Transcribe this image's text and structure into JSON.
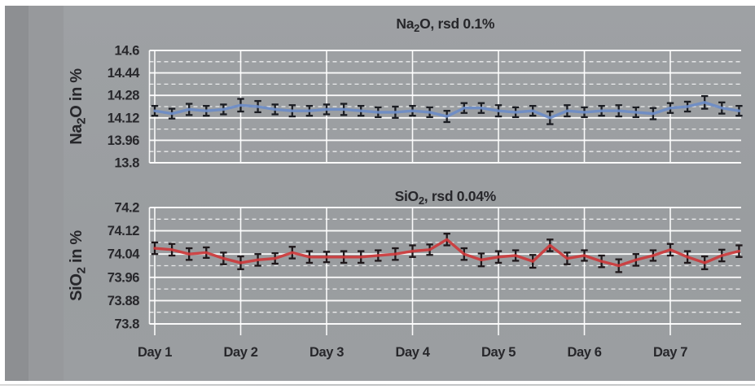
{
  "panel": {
    "background_color": "#9b9ea1",
    "left_strip_dark_color": "#8d8f92",
    "left_strip_mid_color": "#97999c",
    "text_color": "#27272b",
    "gridline_color": "#ffffff"
  },
  "x_axis": {
    "labels": [
      "Day 1",
      "Day 2",
      "Day 3",
      "Day 4",
      "Day 5",
      "Day 6",
      "Day 7"
    ],
    "points_per_day": 5
  },
  "chart_data": [
    {
      "type": "line",
      "title_plain": "Na2O, rsd 0.1%",
      "title_rich": [
        {
          "t": "Na"
        },
        {
          "sub": "2"
        },
        {
          "t": "O, rsd 0.1%"
        }
      ],
      "ylabel_plain": "Na2O in %",
      "ylabel_rich": [
        {
          "t": "Na"
        },
        {
          "sub": "2"
        },
        {
          "t": "O in %"
        }
      ],
      "ylim": [
        13.8,
        14.6
      ],
      "yticks": [
        14.6,
        14.44,
        14.28,
        14.12,
        13.96,
        13.8
      ],
      "ytick_labels": [
        "14.6",
        "14.44",
        "14.28",
        "14.12",
        "13.96",
        "13.8"
      ],
      "minor_step": 0.08,
      "line_color": "#6d8cc7",
      "error_bar_color": "#1a1c22",
      "legend": "none",
      "grid": "on",
      "values": [
        14.17,
        14.15,
        14.18,
        14.17,
        14.18,
        14.21,
        14.2,
        14.18,
        14.17,
        14.17,
        14.18,
        14.18,
        14.17,
        14.16,
        14.16,
        14.17,
        14.16,
        14.13,
        14.19,
        14.19,
        14.17,
        14.16,
        14.17,
        14.12,
        14.17,
        14.16,
        14.17,
        14.17,
        14.16,
        14.15,
        14.19,
        14.2,
        14.23,
        14.19,
        14.17
      ],
      "errors": [
        0.035,
        0.035,
        0.04,
        0.035,
        0.035,
        0.045,
        0.04,
        0.035,
        0.04,
        0.035,
        0.035,
        0.04,
        0.035,
        0.035,
        0.04,
        0.035,
        0.035,
        0.04,
        0.035,
        0.035,
        0.04,
        0.035,
        0.035,
        0.045,
        0.04,
        0.035,
        0.035,
        0.04,
        0.035,
        0.04,
        0.035,
        0.035,
        0.045,
        0.04,
        0.035
      ]
    },
    {
      "type": "line",
      "title_plain": "SiO2, rsd 0.04%",
      "title_rich": [
        {
          "t": "SiO"
        },
        {
          "sub": "2"
        },
        {
          "t": ", rsd 0.04%"
        }
      ],
      "ylabel_plain": "SiO2 in %",
      "ylabel_rich": [
        {
          "t": "SiO"
        },
        {
          "sub": "2"
        },
        {
          "t": " in %"
        }
      ],
      "ylim": [
        73.8,
        74.2
      ],
      "yticks": [
        74.2,
        74.12,
        74.04,
        73.96,
        73.88,
        73.8
      ],
      "ytick_labels": [
        "74.2",
        "74.12",
        "74.04",
        "73.96",
        "73.88",
        "73.8"
      ],
      "minor_step": 0.04,
      "line_color": "#cd3a3b",
      "error_bar_color": "#1e171a",
      "legend": "none",
      "grid": "on",
      "values": [
        74.06,
        74.055,
        74.04,
        74.045,
        74.025,
        74.01,
        74.02,
        74.025,
        74.045,
        74.03,
        74.03,
        74.03,
        74.03,
        74.035,
        74.04,
        74.05,
        74.055,
        74.09,
        74.04,
        74.02,
        74.03,
        74.035,
        74.015,
        74.07,
        74.025,
        74.035,
        74.015,
        74.0,
        74.02,
        74.035,
        74.055,
        74.03,
        74.01,
        74.035,
        74.05
      ],
      "errors": [
        0.02,
        0.02,
        0.02,
        0.018,
        0.02,
        0.022,
        0.02,
        0.018,
        0.02,
        0.02,
        0.018,
        0.02,
        0.02,
        0.018,
        0.02,
        0.02,
        0.018,
        0.02,
        0.02,
        0.022,
        0.02,
        0.018,
        0.022,
        0.02,
        0.02,
        0.018,
        0.02,
        0.022,
        0.02,
        0.018,
        0.02,
        0.02,
        0.022,
        0.02,
        0.02
      ]
    }
  ]
}
